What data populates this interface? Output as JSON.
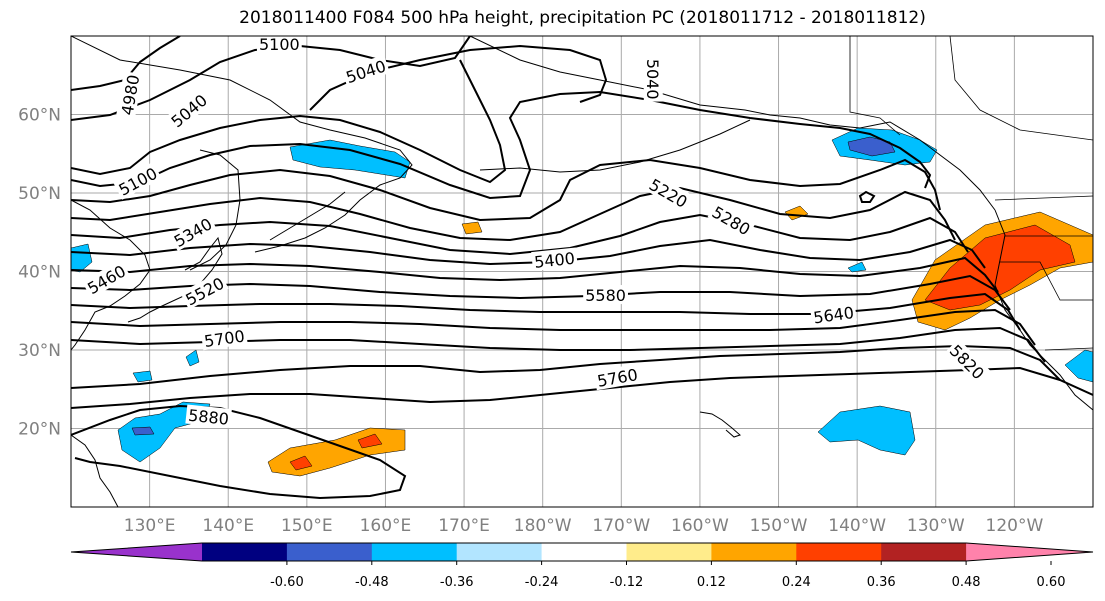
{
  "title": "2018011400 F084 500 hPa height, precipitation PC (2018011712 - 2018011812)",
  "map": {
    "lat_labels": [
      {
        "text": "60°N",
        "lat": 60
      },
      {
        "text": "50°N",
        "lat": 50
      },
      {
        "text": "40°N",
        "lat": 40
      },
      {
        "text": "30°N",
        "lat": 30
      },
      {
        "text": "20°N",
        "lat": 20
      }
    ],
    "lon_labels": [
      {
        "text": "130°E",
        "lon": 130
      },
      {
        "text": "140°E",
        "lon": 140
      },
      {
        "text": "150°E",
        "lon": 150
      },
      {
        "text": "160°E",
        "lon": 160
      },
      {
        "text": "170°E",
        "lon": 170
      },
      {
        "text": "180°W",
        "lon": 180
      },
      {
        "text": "170°W",
        "lon": 190
      },
      {
        "text": "160°W",
        "lon": 200
      },
      {
        "text": "150°W",
        "lon": 210
      },
      {
        "text": "140°W",
        "lon": 220
      },
      {
        "text": "130°W",
        "lon": 230
      },
      {
        "text": "120°W",
        "lon": 240
      }
    ],
    "contour_labels": [
      {
        "text": "5100",
        "lon": 146.5,
        "lat": 69,
        "rot": 0
      },
      {
        "text": "5040",
        "lon": 157.5,
        "lat": 65.5,
        "rot": -18
      },
      {
        "text": "5040",
        "lon": 194,
        "lat": 64.5,
        "rot": 90
      },
      {
        "text": "4980",
        "lon": 127.5,
        "lat": 62.5,
        "rot": -80
      },
      {
        "text": "5040",
        "lon": 135,
        "lat": 60.5,
        "rot": -40
      },
      {
        "text": "5100",
        "lon": 128.5,
        "lat": 51.5,
        "rot": -28
      },
      {
        "text": "5220",
        "lon": 196,
        "lat": 50,
        "rot": 30
      },
      {
        "text": "5280",
        "lon": 204,
        "lat": 46.5,
        "rot": 30
      },
      {
        "text": "5340",
        "lon": 135.5,
        "lat": 45,
        "rot": -30
      },
      {
        "text": "5400",
        "lon": 181.5,
        "lat": 41.5,
        "rot": -6
      },
      {
        "text": "5460",
        "lon": 124.5,
        "lat": 39,
        "rot": -30
      },
      {
        "text": "5520",
        "lon": 137,
        "lat": 37.5,
        "rot": -28
      },
      {
        "text": "5580",
        "lon": 188,
        "lat": 37,
        "rot": 0
      },
      {
        "text": "5640",
        "lon": 217,
        "lat": 34.5,
        "rot": -8
      },
      {
        "text": "5700",
        "lon": 139.5,
        "lat": 31.5,
        "rot": -8
      },
      {
        "text": "5820",
        "lon": 234,
        "lat": 28.5,
        "rot": 45
      },
      {
        "text": "5760",
        "lon": 189.5,
        "lat": 26.5,
        "rot": -10
      },
      {
        "text": "5880",
        "lon": 137.5,
        "lat": 21.5,
        "rot": 6
      }
    ]
  },
  "colorbar": {
    "colors": [
      "#9932CC",
      "#000080",
      "#3A5FCD",
      "#00BFFF",
      "#B2E5FF",
      "#FFFFFF",
      "#FFEC8B",
      "#FFA500",
      "#FF4000",
      "#B22222",
      "#FF82AB"
    ],
    "tick_labels": [
      "-0.60",
      "-0.48",
      "-0.36",
      "-0.24",
      "-0.12",
      "0.12",
      "0.24",
      "0.36",
      "0.48",
      "0.60"
    ]
  }
}
